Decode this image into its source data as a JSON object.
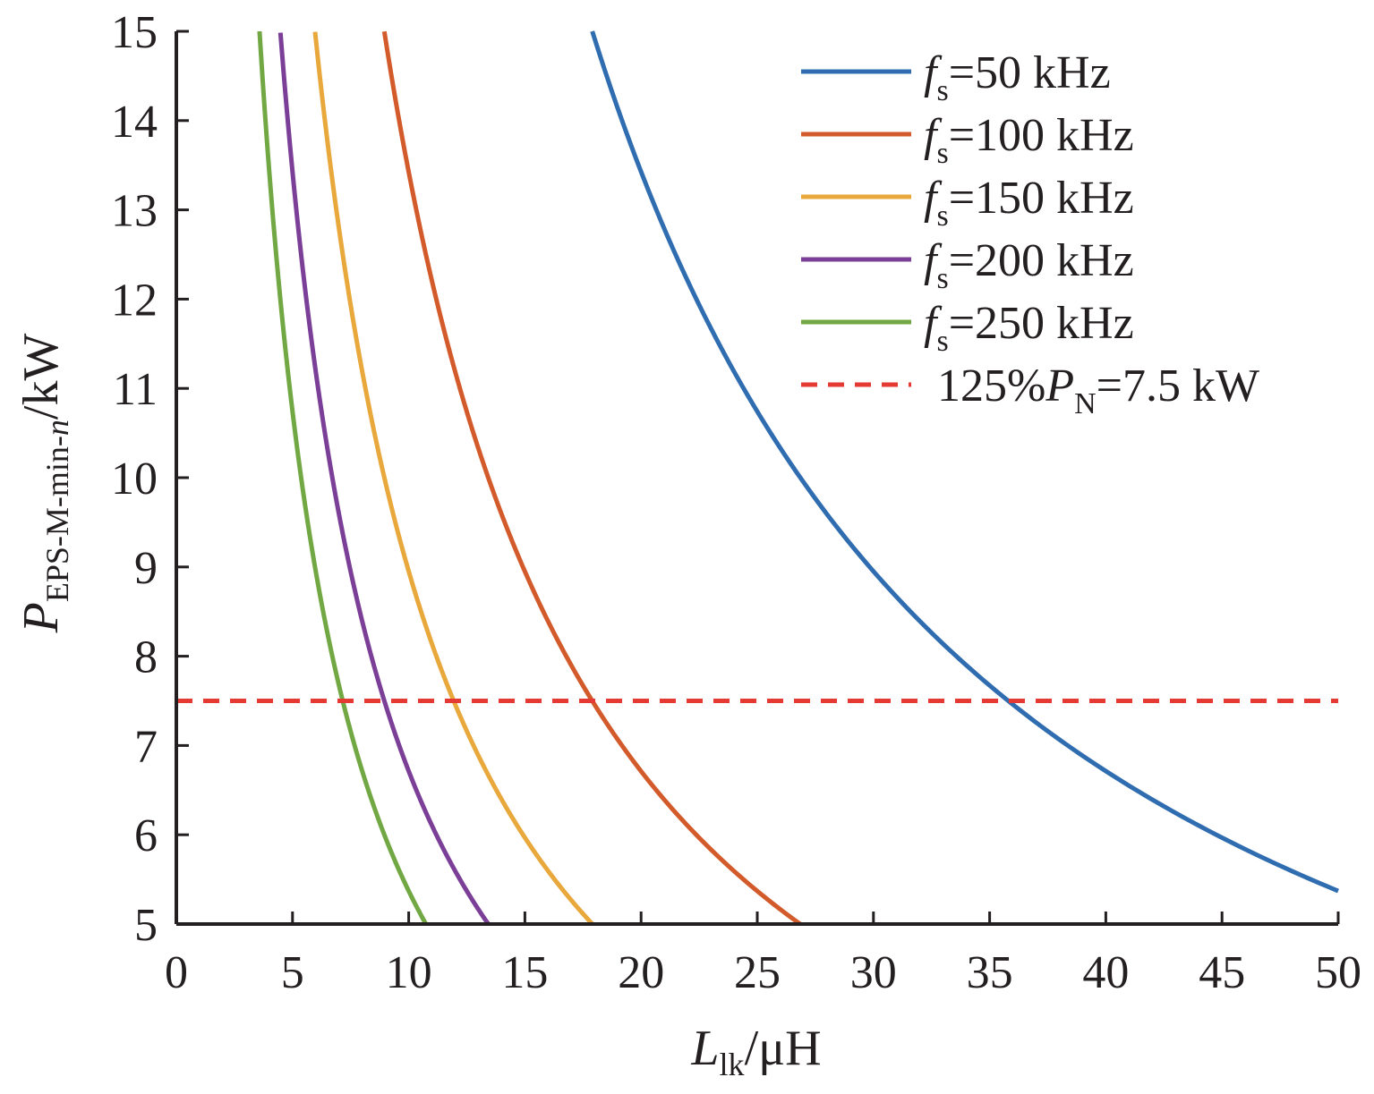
{
  "chart_data": {
    "type": "line",
    "title": "",
    "xlabel": {
      "main": "L",
      "sub": "lk",
      "unit": "/μH"
    },
    "ylabel": {
      "main": "P",
      "sub": "EPS-M-min-",
      "sub_italic": "n",
      "unit": "/kW"
    },
    "xlim": [
      0,
      50
    ],
    "ylim": [
      5,
      15
    ],
    "xticks": [
      "0",
      "5",
      "10",
      "15",
      "20",
      "25",
      "30",
      "35",
      "40",
      "45",
      "50"
    ],
    "yticks": [
      "5",
      "6",
      "7",
      "8",
      "9",
      "10",
      "11",
      "12",
      "13",
      "14",
      "15"
    ],
    "grid": false,
    "legend_position": "top-right",
    "series": [
      {
        "name_main": "f",
        "name_sub": "s",
        "name_rest": "=50 kHz",
        "color": "#2f6db0",
        "style": "solid",
        "x": [
          17.9,
          20,
          22,
          25,
          28,
          30,
          33,
          35.8,
          38,
          40,
          42,
          45,
          48,
          50
        ],
        "y": [
          15.0,
          13.43,
          12.2,
          10.74,
          9.59,
          8.95,
          8.14,
          7.5,
          7.07,
          6.72,
          6.39,
          5.97,
          5.59,
          5.37
        ]
      },
      {
        "name_main": "f",
        "name_sub": "s",
        "name_rest": "=100 kHz",
        "color": "#d35b2b",
        "style": "solid",
        "x": [
          8.95,
          10,
          11,
          12.5,
          14,
          16,
          17.9,
          20,
          22,
          24,
          26.85
        ],
        "y": [
          15.0,
          13.43,
          12.2,
          10.74,
          9.59,
          8.39,
          7.5,
          6.71,
          6.1,
          5.59,
          5.0
        ]
      },
      {
        "name_main": "f",
        "name_sub": "s",
        "name_rest": "=150 kHz",
        "color": "#e8a83c",
        "style": "solid",
        "x": [
          5.97,
          6.5,
          7,
          8,
          9,
          10,
          11,
          11.93,
          13,
          14,
          15,
          16,
          17.9
        ],
        "y": [
          15.0,
          13.77,
          12.79,
          11.19,
          9.95,
          8.95,
          8.14,
          7.5,
          6.89,
          6.39,
          5.97,
          5.59,
          5.0
        ]
      },
      {
        "name_main": "f",
        "name_sub": "s",
        "name_rest": "=200 kHz",
        "color": "#7b3f98",
        "style": "solid",
        "x": [
          4.48,
          5,
          5.5,
          6,
          6.5,
          7,
          8,
          8.95,
          10,
          11,
          12,
          13.43
        ],
        "y": [
          15.0,
          13.43,
          12.2,
          11.19,
          10.33,
          9.59,
          8.39,
          7.5,
          6.71,
          6.1,
          5.59,
          5.0
        ]
      },
      {
        "name_main": "f",
        "name_sub": "s",
        "name_rest": "=250 kHz",
        "color": "#72a843",
        "style": "solid",
        "x": [
          3.58,
          4,
          4.5,
          5,
          5.5,
          6,
          6.5,
          7.16,
          8,
          9,
          10,
          10.74
        ],
        "y": [
          15.0,
          13.43,
          11.94,
          10.74,
          9.76,
          8.95,
          8.26,
          7.5,
          6.71,
          5.97,
          5.37,
          5.0
        ]
      },
      {
        "name_main": "125%P",
        "name_sub": "N",
        "name_rest": "=7.5 kW",
        "color": "#e53a33",
        "style": "dashed",
        "x": [
          0,
          50
        ],
        "y": [
          7.5,
          7.5
        ]
      }
    ]
  }
}
